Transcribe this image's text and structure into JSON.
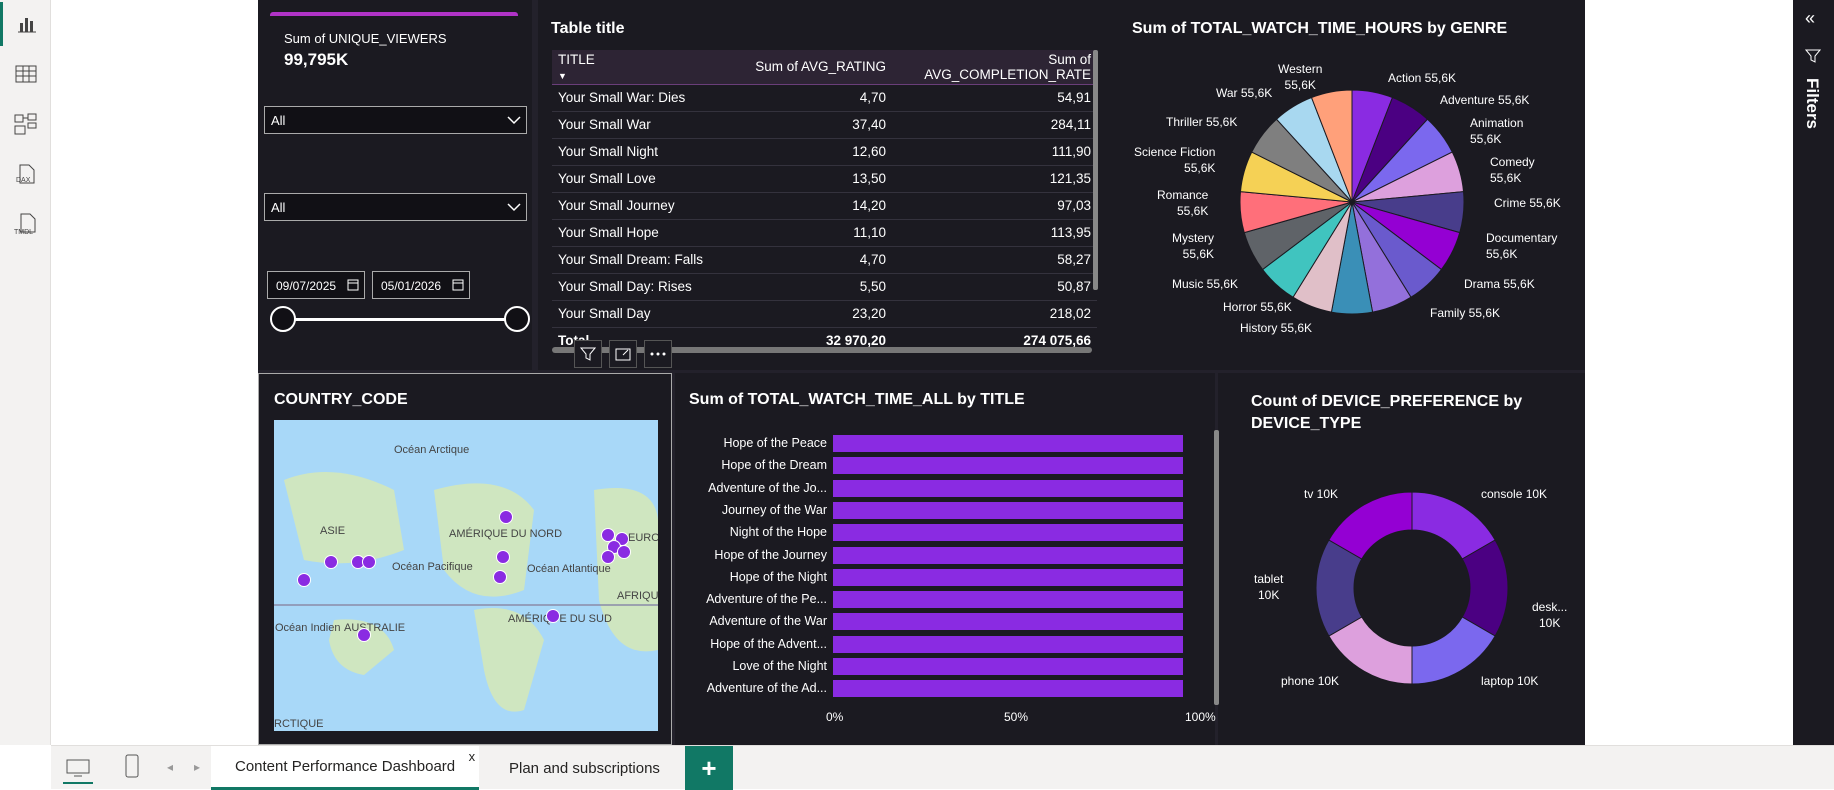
{
  "card": {
    "label": "Sum of UNIQUE_VIEWERS",
    "value": "99,795K"
  },
  "filters": {
    "dropdown1": "All",
    "dropdown2": "All",
    "date_start": "09/07/2025",
    "date_end": "05/01/2026"
  },
  "table": {
    "title": "Table title",
    "columns": [
      "TITLE",
      "Sum of AVG_RATING",
      "Sum of AVG_COMPLETION_RATE"
    ],
    "rows": [
      [
        "Your Small War: Dies",
        "4,70",
        "54,91"
      ],
      [
        "Your Small War",
        "37,40",
        "284,11"
      ],
      [
        "Your Small Night",
        "12,60",
        "111,90"
      ],
      [
        "Your Small Love",
        "13,50",
        "121,35"
      ],
      [
        "Your Small Journey",
        "14,20",
        "97,03"
      ],
      [
        "Your Small Hope",
        "11,10",
        "113,95"
      ],
      [
        "Your Small Dream: Falls",
        "4,70",
        "58,27"
      ],
      [
        "Your Small Day: Rises",
        "5,50",
        "50,87"
      ],
      [
        "Your Small Day",
        "23,20",
        "218,02"
      ]
    ],
    "total": [
      "Total",
      "32 970,20",
      "274 075,66"
    ]
  },
  "map": {
    "title": "COUNTRY_CODE",
    "labels": [
      "Océan Arctique",
      "ASIE",
      "AMÉRIQUE DU NORD",
      "EUROPE",
      "Océan Pacifique",
      "Océan Atlantique",
      "AFRIQUE",
      "AMÉRIQUE DU SUD",
      "Océan Indien",
      "AUSTRALIE",
      "RCTIQUE"
    ]
  },
  "bar_chart": {
    "title": "Sum of TOTAL_WATCH_TIME_ALL by TITLE",
    "ticks": [
      "0%",
      "50%",
      "100%"
    ]
  },
  "pie": {
    "title": "Sum of TOTAL_WATCH_TIME_HOURS by GENRE",
    "labels": [
      [
        "Action 55,6K"
      ],
      [
        "Adventure 55,6K"
      ],
      [
        "Animation",
        "55,6K"
      ],
      [
        "Comedy",
        "55,6K"
      ],
      [
        "Crime 55,6K"
      ],
      [
        "Documentary",
        "55,6K"
      ],
      [
        "Drama 55,6K"
      ],
      [
        "Family 55,6K"
      ],
      [
        "History 55,6K"
      ],
      [
        "Horror 55,6K"
      ],
      [
        "Music 55,6K"
      ],
      [
        "Mystery",
        "55,6K"
      ],
      [
        "Romance",
        "55,6K"
      ],
      [
        "Science Fiction",
        "55,6K"
      ],
      [
        "Thriller 55,6K"
      ],
      [
        "War 55,6K"
      ],
      [
        "Western",
        "55,6K"
      ]
    ]
  },
  "donut": {
    "title_line1": "Count of DEVICE_PREFERENCE by",
    "title_line2": "DEVICE_TYPE",
    "labels": [
      [
        "console 10K"
      ],
      [
        "desk...",
        "10K"
      ],
      [
        "laptop 10K"
      ],
      [
        "phone 10K"
      ],
      [
        "tablet",
        "10K"
      ],
      [
        "tv 10K"
      ]
    ]
  },
  "chart_data": [
    {
      "type": "bar",
      "title": "Sum of TOTAL_WATCH_TIME_ALL by TITLE",
      "categories": [
        "Hope of the Peace",
        "Hope of the Dream",
        "Adventure of the Jo...",
        "Journey of the War",
        "Night of the Hope",
        "Hope of the Journey",
        "Hope of the Night",
        "Adventure of the Pe...",
        "Adventure of the War",
        "Hope of the Advent...",
        "Love of the Night",
        "Adventure of the Ad..."
      ],
      "values": [
        100,
        100,
        100,
        100,
        100,
        100,
        100,
        100,
        100,
        100,
        100,
        100
      ],
      "xlim": [
        0,
        100
      ],
      "color": "#8a2be2"
    },
    {
      "type": "pie",
      "title": "Sum of TOTAL_WATCH_TIME_HOURS by GENRE",
      "categories": [
        "Action",
        "Adventure",
        "Animation",
        "Comedy",
        "Crime",
        "Documentary",
        "Drama",
        "Family",
        "History",
        "Horror",
        "Music",
        "Mystery",
        "Romance",
        "Science Fiction",
        "Thriller",
        "War",
        "Western"
      ],
      "values": [
        55.6,
        55.6,
        55.6,
        55.6,
        55.6,
        55.6,
        55.6,
        55.6,
        55.6,
        55.6,
        55.6,
        55.6,
        55.6,
        55.6,
        55.6,
        55.6,
        55.6
      ],
      "colors": [
        "#8a2be2",
        "#4b0082",
        "#7b68ee",
        "#dda0dd",
        "#483d8b",
        "#9400d3",
        "#6a5acd",
        "#9370db",
        "#3a8fb7",
        "#e0bfc8",
        "#40c4bf",
        "#5f6368",
        "#ff6f7a",
        "#f5d155",
        "#7f7f7f",
        "#a8d8f0",
        "#ffa07a",
        "#c48fb5"
      ]
    },
    {
      "type": "pie",
      "title": "Count of DEVICE_PREFERENCE by DEVICE_TYPE",
      "categories": [
        "console",
        "desk...",
        "laptop",
        "phone",
        "tablet",
        "tv"
      ],
      "values": [
        10,
        10,
        10,
        10,
        10,
        10
      ],
      "colors": [
        "#8a2be2",
        "#4b0082",
        "#7b68ee",
        "#dda0dd",
        "#483d8b",
        "#9400d3"
      ]
    }
  ],
  "tabs": [
    "Content Performance Dashboard",
    "Plan and subscriptions"
  ],
  "right_pane": {
    "label": "Filters"
  }
}
